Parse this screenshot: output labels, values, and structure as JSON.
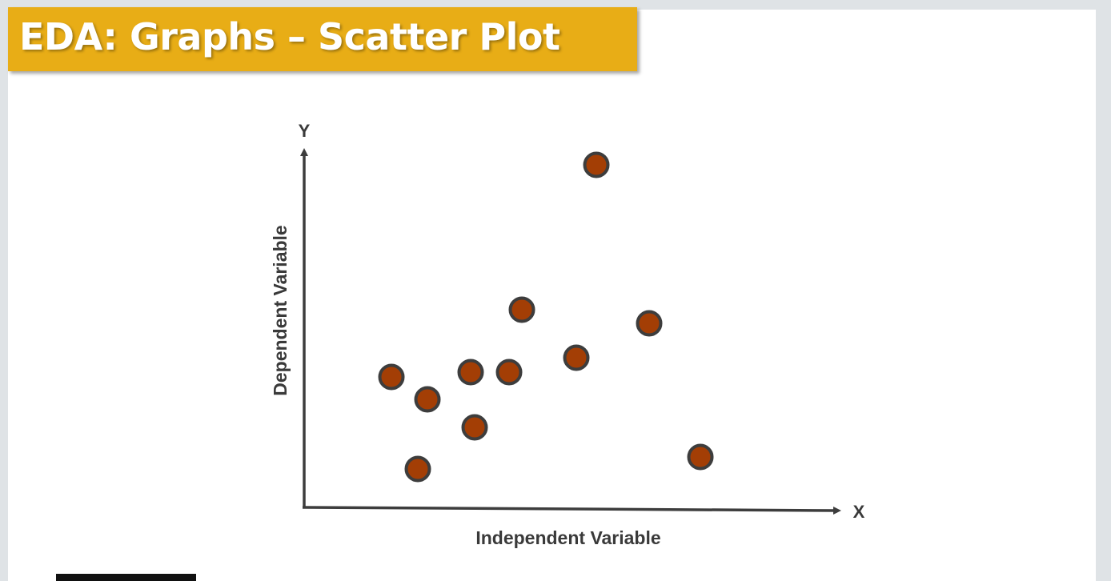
{
  "slide": {
    "title": "EDA: Graphs – Scatter Plot"
  },
  "diagram": {
    "y_axis_letter": "Y",
    "x_axis_letter": "X",
    "y_axis_label": "Dependent Variable",
    "x_axis_label": "Independent Variable",
    "point_color": "#a33e05",
    "point_outline_color": "#3d3d3d",
    "axis_color": "#3d3d3d",
    "points": [
      {
        "name": "point-1"
      },
      {
        "name": "point-2"
      },
      {
        "name": "point-3"
      },
      {
        "name": "point-4"
      },
      {
        "name": "point-5"
      },
      {
        "name": "point-6"
      },
      {
        "name": "point-7"
      },
      {
        "name": "point-8"
      },
      {
        "name": "point-9"
      },
      {
        "name": "point-10"
      },
      {
        "name": "point-11"
      }
    ]
  }
}
